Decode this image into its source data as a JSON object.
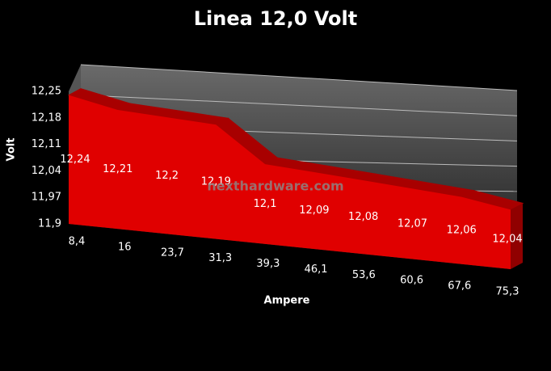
{
  "chart_data": {
    "type": "area",
    "title": "Linea 12,0 Volt",
    "x_label": "Ampere",
    "y_label": "Volt",
    "watermark": "nexthardware.com",
    "categories": [
      "8,4",
      "16",
      "23,7",
      "31,3",
      "39,3",
      "46,1",
      "53,6",
      "60,6",
      "67,6",
      "75,3"
    ],
    "values": [
      12.24,
      12.21,
      12.2,
      12.19,
      12.1,
      12.09,
      12.08,
      12.07,
      12.06,
      12.04
    ],
    "value_labels": [
      "12,24",
      "12,21",
      "12,2",
      "12,19",
      "12,1",
      "12,09",
      "12,08",
      "12,07",
      "12,06",
      "12,04"
    ],
    "color": "#e00000",
    "ylim": [
      11.9,
      12.25
    ],
    "yticks": [
      {
        "value": 11.9,
        "label": "11,9"
      },
      {
        "value": 11.97,
        "label": "11,97"
      },
      {
        "value": 12.04,
        "label": "12,04"
      },
      {
        "value": 12.11,
        "label": "12,11"
      },
      {
        "value": 12.18,
        "label": "12,18"
      },
      {
        "value": 12.25,
        "label": "12,25"
      }
    ],
    "grid": true
  }
}
